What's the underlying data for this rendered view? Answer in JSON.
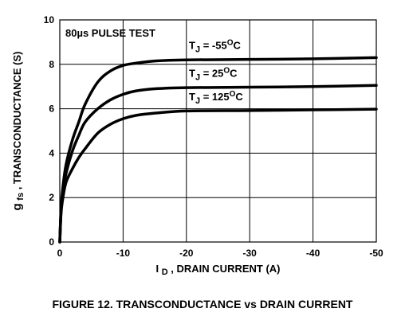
{
  "chart_data": {
    "type": "line",
    "figure_caption": "FIGURE 12.  TRANSCONDUCTANCE vs DRAIN CURRENT",
    "xlabel": "I D, DRAIN CURRENT (A)",
    "xlabel_parts": {
      "main": "I",
      "sub": "D",
      "rest": ", DRAIN CURRENT (A)"
    },
    "ylabel": "gfs, TRANSCONDUCTANCE (S)",
    "ylabel_parts": {
      "main": "g",
      "sub": "fs",
      "rest": ", TRANSCONDUCTANCE (S)"
    },
    "annotation": "80µs PULSE TEST",
    "xlim": [
      0,
      -50
    ],
    "ylim": [
      0,
      10
    ],
    "x_ticks": [
      0,
      -10,
      -20,
      -30,
      -40,
      -50
    ],
    "x_tick_labels": [
      "0",
      "-10",
      "-20",
      "-30",
      "-40",
      "-50"
    ],
    "y_ticks": [
      0,
      2,
      4,
      6,
      8,
      10
    ],
    "y_tick_labels": [
      "0",
      "2",
      "4",
      "6",
      "8",
      "10"
    ],
    "grid": true,
    "series": [
      {
        "name": "TJ = -55°C",
        "label_parts": {
          "main": "T",
          "sub": "J",
          "rest": " = -55",
          "sup": "O",
          "unit": "C"
        },
        "x": [
          0,
          -0.2,
          -0.5,
          -1,
          -2,
          -3,
          -4,
          -6,
          -8,
          -10,
          -12,
          -15,
          -20,
          -30,
          -40,
          -50
        ],
        "y": [
          0,
          1.5,
          2.5,
          3.5,
          4.6,
          5.4,
          6.2,
          7.2,
          7.7,
          7.95,
          8.05,
          8.15,
          8.2,
          8.22,
          8.25,
          8.3
        ]
      },
      {
        "name": "TJ = 25°C",
        "label_parts": {
          "main": "T",
          "sub": "J",
          "rest": " = 25",
          "sup": "O",
          "unit": "C"
        },
        "x": [
          0,
          -0.2,
          -0.5,
          -1,
          -2,
          -3,
          -4,
          -6,
          -8,
          -10,
          -12,
          -15,
          -20,
          -30,
          -40,
          -50
        ],
        "y": [
          0,
          1.4,
          2.3,
          3.1,
          4.1,
          4.8,
          5.4,
          6.0,
          6.4,
          6.65,
          6.8,
          6.9,
          6.95,
          6.97,
          7.0,
          7.05
        ]
      },
      {
        "name": "TJ = 125°C",
        "label_parts": {
          "main": "T",
          "sub": "J",
          "rest": " = 125",
          "sup": "O",
          "unit": "C"
        },
        "x": [
          0,
          -0.2,
          -0.5,
          -1,
          -2,
          -3,
          -4,
          -6,
          -8,
          -10,
          -12,
          -15,
          -20,
          -30,
          -40,
          -50
        ],
        "y": [
          0,
          1.3,
          2.0,
          2.7,
          3.3,
          3.8,
          4.2,
          4.9,
          5.3,
          5.55,
          5.7,
          5.8,
          5.9,
          5.92,
          5.95,
          5.98
        ]
      }
    ],
    "colors": {
      "line": "#000000",
      "grid": "#000000",
      "background": "#ffffff"
    }
  }
}
